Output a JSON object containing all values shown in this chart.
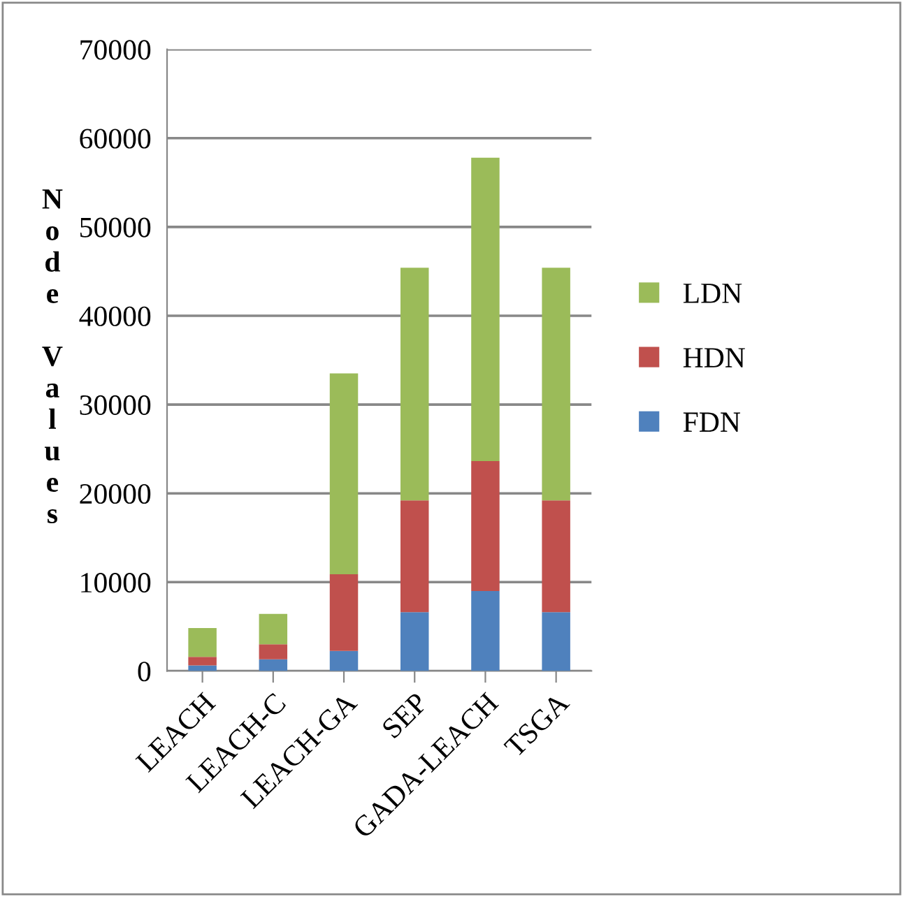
{
  "chart_data": {
    "type": "bar",
    "stacked": true,
    "ylabel": "Node Values",
    "categories": [
      "LEACH",
      "LEACH-C",
      "LEACH-GA",
      "SEP",
      "GADA-LEACH",
      "TSGA"
    ],
    "series": [
      {
        "name": "FDN",
        "color": "#4f81bd",
        "values": [
          630,
          1320,
          2260,
          6630,
          9000,
          6630
        ]
      },
      {
        "name": "HDN",
        "color": "#c0504d",
        "values": [
          950,
          1680,
          8640,
          12570,
          14630,
          12570
        ]
      },
      {
        "name": "LDN",
        "color": "#9bbb59",
        "values": [
          3260,
          3420,
          22600,
          26200,
          34170,
          26200
        ]
      }
    ],
    "ylim": [
      0,
      70000
    ],
    "yticks": [
      0,
      10000,
      20000,
      30000,
      40000,
      50000,
      60000,
      70000
    ],
    "grid": "y",
    "legend": "right"
  }
}
